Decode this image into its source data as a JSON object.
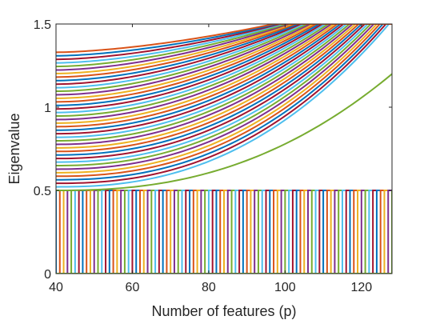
{
  "chart_data": {
    "type": "line",
    "title": "",
    "xlabel": "Number of features (p)",
    "ylabel": "Eigenvalue",
    "xlim": [
      40,
      128
    ],
    "ylim": [
      0,
      1.5
    ],
    "xticks": [
      "40",
      "60",
      "80",
      "100",
      "120"
    ],
    "yticks": [
      "0",
      "0.5",
      "1",
      "1.5"
    ],
    "grid": false,
    "legend": "none",
    "colors": [
      "#0072BD",
      "#D95319",
      "#EDB120",
      "#7E2F8E",
      "#77AC30",
      "#4DBEEE",
      "#A2142F"
    ],
    "upper_band": {
      "description_values": "Each curve is an eigenvalue trajectory: starts near 0.5-1.35 at p=40 and rises to the 1.5 ceiling; curves reach the ceiling between p≈97 and p≈128",
      "curve_count": 40,
      "start_values_at_p40": {
        "min": 0.5,
        "max": 1.33
      },
      "ceiling": 1.5,
      "ceiling_hit_p_range": [
        97,
        128
      ],
      "lowest_curve_value_at_p128": 1.2
    },
    "lower_band": {
      "description_values": "Step curves: each equals 0 before its p value and 0.5 from that p onward; steps at every integer p from 40 to 128",
      "step_low": 0,
      "step_high": 0.5,
      "step_p_start": 40,
      "step_p_end": 128,
      "step_increment": 1
    }
  }
}
